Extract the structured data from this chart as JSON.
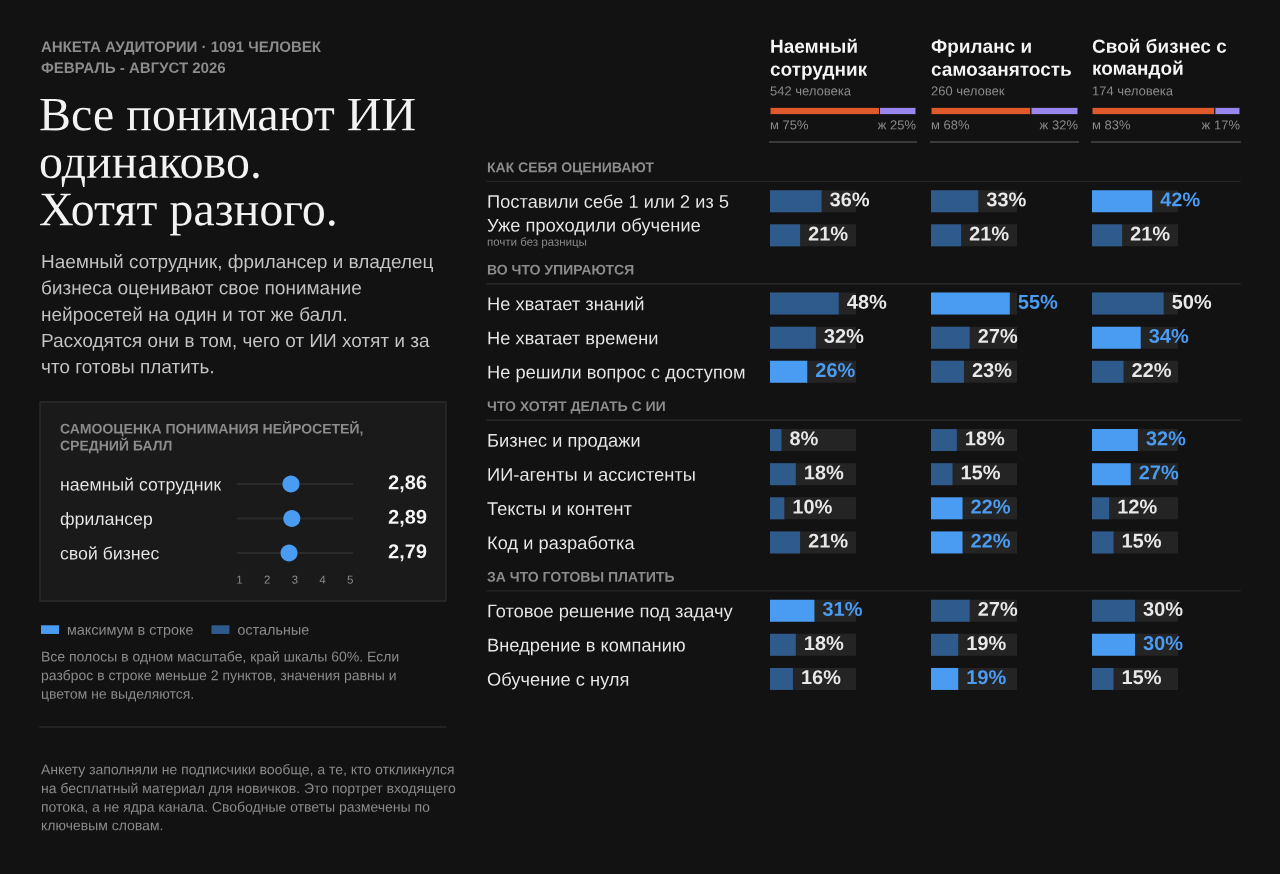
{
  "chart_data": [
    {
      "type": "other",
      "title": "Все понимают ИИ\nодинаково.\nХотят разного.",
      "subtitle": "Наемный сотрудник, фрилансер и владелец\nбизнеса оценивают свое понимание\nнейросетей на один и тот же балл.\nРасходятся они в том, чего от ИИ хотят и за\nчто готовы платить.",
      "annotations": [
        "АНКЕТА АУДИТОРИИ · 1091 ЧЕЛОВЕК",
        "ФЕВРАЛЬ - АВГУСТ 2026"
      ]
    },
    {
      "type": "scatter",
      "title": "САМООЦЕНКА ПОНИМАНИЯ НЕЙРОСЕТЕЙ,\nСРЕДНИЙ БАЛЛ",
      "orientation": "horizontal",
      "categories": [
        "наемный сотрудник",
        "фрилансер",
        "свой бизнес"
      ],
      "values": [
        2.86,
        2.89,
        2.79
      ],
      "value_labels": [
        "2,86",
        "2,89",
        "2,79"
      ],
      "color": "#4a9bf2",
      "marker": "circle",
      "xlim": [
        0.9,
        5.1
      ],
      "xticks": [
        1,
        2,
        3,
        4,
        5
      ],
      "grid": "y"
    },
    {
      "type": "bar",
      "stacked": true,
      "orientation": "horizontal",
      "title": "Наемный\nсотрудник",
      "subtitle": "542 человека",
      "categories": [
        null
      ],
      "series": [
        {
          "name": "м",
          "color": "#e0592b",
          "values": [
            75
          ],
          "value_labels": [
            "75%"
          ]
        },
        {
          "name": "ж",
          "color": "#9a87ee",
          "values": [
            25
          ],
          "value_labels": [
            "25%"
          ]
        }
      ],
      "tick_labels": false
    },
    {
      "type": "bar",
      "stacked": true,
      "orientation": "horizontal",
      "title": "Фриланс и\nсамозанятость",
      "subtitle": "260 человек",
      "categories": [
        null
      ],
      "series": [
        {
          "name": "м",
          "color": "#e0592b",
          "values": [
            68
          ],
          "value_labels": [
            "68%"
          ]
        },
        {
          "name": "ж",
          "color": "#9a87ee",
          "values": [
            32
          ],
          "value_labels": [
            "32%"
          ]
        }
      ],
      "tick_labels": false
    },
    {
      "type": "bar",
      "stacked": true,
      "orientation": "horizontal",
      "title": "Свой бизнес с\nкомандой",
      "subtitle": "174 человека",
      "categories": [
        null
      ],
      "series": [
        {
          "name": "м",
          "color": "#e0592b",
          "values": [
            83
          ],
          "value_labels": [
            "83%"
          ]
        },
        {
          "name": "ж",
          "color": "#9a87ee",
          "values": [
            17
          ],
          "value_labels": [
            "17%"
          ]
        }
      ],
      "tick_labels": false
    },
    {
      "type": "bar",
      "orientation": "horizontal",
      "categories": [
        "КАК СЕБЯ ОЦЕНИВАЮТ",
        "Поставили себе 1 или 2 из 5",
        "Уже проходили обучение\nпочти без разницы",
        "ВО ЧТО УПИРАЮТСЯ",
        "Не хватает знаний",
        "Не хватает времени",
        "Не решили вопрос с доступом",
        "ЧТО ХОТЯТ ДЕЛАТЬ С ИИ",
        "Бизнес и продажи",
        "ИИ-агенты и ассистенты",
        "Тексты и контент",
        "Код и разработка",
        "ЗА ЧТО ГОТОВЫ ПЛАТИТЬ",
        "Готовое решение под задачу",
        "Внедрение в компанию",
        "Обучение с нуля"
      ],
      "series": [
        {
          "name": "максимум в строке",
          "color": "#4a9bf2",
          "values": [
            null,
            null,
            null,
            null,
            null,
            null,
            26,
            null,
            null,
            null,
            null,
            null,
            null,
            31,
            null,
            null
          ],
          "value_labels": [
            null,
            null,
            null,
            null,
            null,
            null,
            "26%",
            null,
            null,
            null,
            null,
            null,
            null,
            "31%",
            null,
            null
          ]
        },
        {
          "name": "остальные",
          "color": "#2f5a8c",
          "values": [
            null,
            36,
            21,
            null,
            48,
            32,
            null,
            null,
            8,
            18,
            10,
            21,
            null,
            null,
            18,
            16
          ],
          "value_labels": [
            null,
            "36%",
            "21%",
            null,
            "48%",
            "32%",
            null,
            null,
            "8%",
            "18%",
            "10%",
            "21%",
            null,
            null,
            "18%",
            "16%"
          ]
        }
      ],
      "xlim": [
        0,
        60
      ],
      "tick_labels": "y",
      "legend": "left",
      "annotations": [
        "Все полосы в одном масштабе, край шкалы 60%. Если\nразброс в строке меньше 2 пунктов, значения равны и\nцветом не выделяются.",
        "Анкету заполняли не подписчики вообще, а те, кто откликнулся\nна бесплатный материал для новичков. Это портрет входящего\nпотока, а не ядра канала. Свободные ответы размечены по\nключевым словам."
      ]
    },
    {
      "type": "bar",
      "orientation": "horizontal",
      "categories": [
        null,
        null,
        null,
        null,
        null,
        null,
        null,
        null,
        null,
        null,
        null,
        null,
        null,
        null,
        null,
        null
      ],
      "series": [
        {
          "color": "#4a9bf2",
          "values": [
            null,
            null,
            null,
            null,
            55,
            null,
            null,
            null,
            null,
            null,
            22,
            22,
            null,
            null,
            null,
            19
          ],
          "value_labels": [
            null,
            null,
            null,
            null,
            "55%",
            null,
            null,
            null,
            null,
            null,
            "22%",
            "22%",
            null,
            null,
            null,
            "19%"
          ]
        },
        {
          "color": "#2f5a8c",
          "values": [
            null,
            33,
            21,
            null,
            null,
            27,
            23,
            null,
            18,
            15,
            null,
            null,
            null,
            27,
            19,
            null
          ],
          "value_labels": [
            null,
            "33%",
            "21%",
            null,
            null,
            "27%",
            "23%",
            null,
            "18%",
            "15%",
            null,
            null,
            null,
            "27%",
            "19%",
            null
          ]
        }
      ],
      "xlim": [
        0,
        60
      ],
      "tick_labels": false
    },
    {
      "type": "bar",
      "orientation": "horizontal",
      "categories": [
        null,
        null,
        null,
        null,
        null,
        null,
        null,
        null,
        null,
        null,
        null,
        null,
        null,
        null,
        null,
        null
      ],
      "series": [
        {
          "color": "#4a9bf2",
          "values": [
            null,
            42,
            null,
            null,
            null,
            34,
            null,
            null,
            32,
            27,
            null,
            null,
            null,
            null,
            30,
            null
          ],
          "value_labels": [
            null,
            "42%",
            null,
            null,
            null,
            "34%",
            null,
            null,
            "32%",
            "27%",
            null,
            null,
            null,
            null,
            "30%",
            null
          ]
        },
        {
          "color": "#2f5a8c",
          "values": [
            null,
            null,
            21,
            null,
            50,
            null,
            22,
            null,
            null,
            null,
            12,
            15,
            null,
            30,
            null,
            15
          ],
          "value_labels": [
            null,
            null,
            "21%",
            null,
            "50%",
            null,
            "22%",
            null,
            null,
            null,
            "12%",
            "15%",
            null,
            "30%",
            null,
            "15%"
          ]
        }
      ],
      "xlim": [
        0,
        60
      ],
      "tick_labels": false
    }
  ]
}
